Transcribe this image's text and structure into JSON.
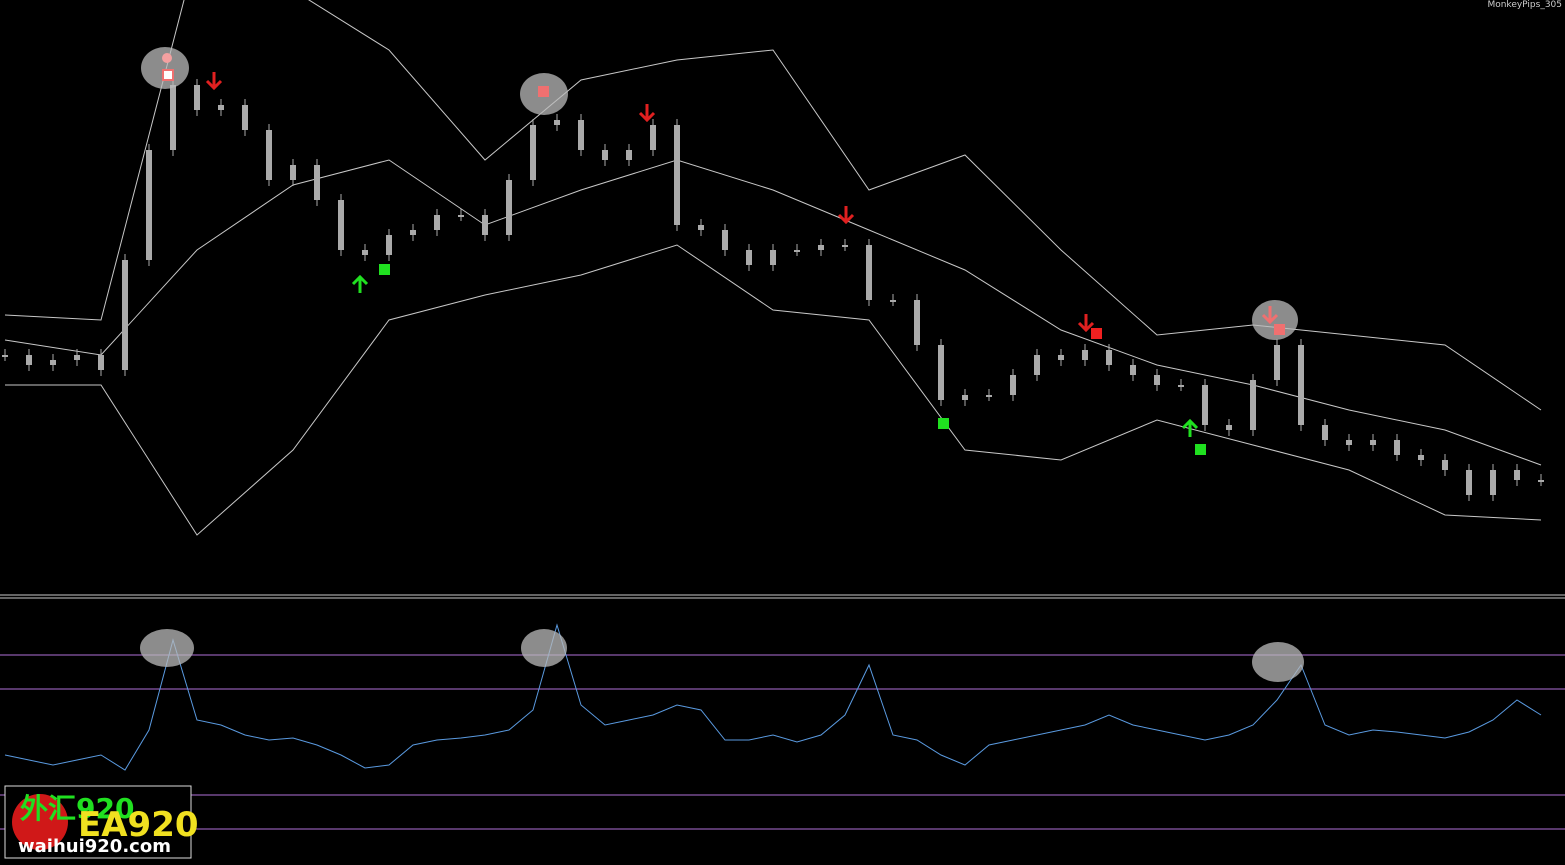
{
  "header": {
    "indicator_label": "MonkeyPips_305"
  },
  "watermark": {
    "cn": "外汇920",
    "brand": "EA920",
    "site": "waihui920.com"
  },
  "chart_data": [
    {
      "type": "candlestick",
      "color": "#aaaaaa",
      "ylim": [
        0,
        590
      ],
      "values": [
        235,
        225,
        230,
        235,
        220,
        330,
        440,
        505,
        480,
        485,
        460,
        410,
        425,
        390,
        340,
        335,
        355,
        360,
        375,
        375,
        355,
        410,
        465,
        470,
        440,
        430,
        440,
        465,
        365,
        360,
        340,
        325,
        340,
        340,
        345,
        345,
        290,
        290,
        245,
        190,
        195,
        195,
        215,
        235,
        230,
        240,
        225,
        215,
        205,
        205,
        165,
        160,
        210,
        245,
        165,
        150,
        145,
        150,
        135,
        130,
        120,
        95,
        120,
        110,
        110
      ]
    },
    {
      "type": "line",
      "ylim": [
        0,
        590
      ],
      "series": [
        {
          "color": "#c8c8c8",
          "values": [
            275,
            270,
            640,
            600,
            540,
            430,
            510,
            530,
            540,
            400,
            435,
            340,
            255,
            265,
            255,
            245,
            180
          ]
        },
        {
          "color": "#c8c8c8",
          "values": [
            250,
            235,
            340,
            405,
            430,
            365,
            400,
            430,
            400,
            360,
            320,
            260,
            225,
            205,
            180,
            160,
            125
          ]
        },
        {
          "color": "#c8c8c8",
          "values": [
            205,
            205,
            55,
            140,
            270,
            295,
            315,
            345,
            280,
            270,
            140,
            130,
            170,
            145,
            120,
            75,
            70
          ]
        }
      ]
    },
    {
      "type": "oscillator",
      "color": "#5a9ae0",
      "ylim": [
        0,
        267
      ],
      "hlines": [
        210,
        176,
        70,
        36
      ],
      "hline_color": "#b070d8",
      "values": [
        110,
        105,
        100,
        105,
        110,
        95,
        135,
        225,
        145,
        140,
        130,
        125,
        127,
        120,
        110,
        97,
        100,
        120,
        125,
        127,
        130,
        135,
        155,
        240,
        160,
        140,
        145,
        150,
        160,
        155,
        125,
        125,
        130,
        123,
        130,
        150,
        200,
        130,
        125,
        110,
        100,
        120,
        125,
        130,
        135,
        140,
        150,
        140,
        135,
        130,
        125,
        130,
        140,
        165,
        200,
        140,
        130,
        135,
        133,
        130,
        127,
        133,
        145,
        165,
        150
      ]
    }
  ]
}
